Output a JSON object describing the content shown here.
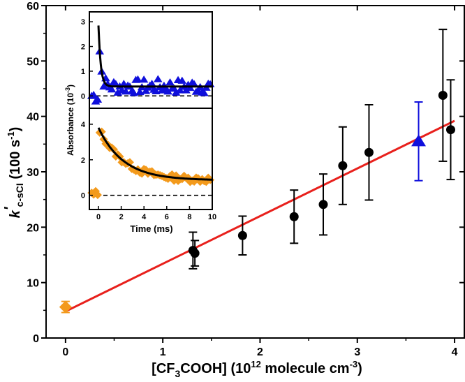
{
  "chart_data": [
    {
      "name": "main",
      "type": "scatter",
      "xlabel": "[CF3COOH] (10^12 molecule cm^-3)",
      "xlabel_parts": {
        "pre": "[CF",
        "sub": "3",
        "mid": "COOH] (10",
        "sup": "12",
        "post": " molecule cm",
        "sup2": "-3",
        "end": ")"
      },
      "ylabel": "k'c-sCI (100 s^-1)",
      "ylabel_parts": {
        "k": "k",
        "prime": "'",
        "sub": "c-sCI",
        "unit": " (100 s",
        "sup": "-1",
        "end": ")"
      },
      "xlim": [
        -0.2,
        4.1
      ],
      "ylim": [
        0,
        60
      ],
      "xticks": [
        0,
        1,
        2,
        3,
        4
      ],
      "yticks": [
        0,
        10,
        20,
        30,
        40,
        50,
        60
      ],
      "grid": false,
      "series": [
        {
          "name": "black circles",
          "marker": "circle",
          "color": "#000000",
          "points": [
            {
              "x": 1.31,
              "y": 15.8,
              "err": 3.3
            },
            {
              "x": 1.33,
              "y": 15.3,
              "err": 2.3
            },
            {
              "x": 1.82,
              "y": 18.5,
              "err": 3.5
            },
            {
              "x": 2.35,
              "y": 21.9,
              "err": 4.8
            },
            {
              "x": 2.65,
              "y": 24.1,
              "err": 5.5
            },
            {
              "x": 2.85,
              "y": 31.1,
              "err": 7.0
            },
            {
              "x": 3.12,
              "y": 33.5,
              "err": 8.6
            },
            {
              "x": 3.88,
              "y": 43.8,
              "err": 11.9
            },
            {
              "x": 3.96,
              "y": 37.6,
              "err": 9.0
            }
          ]
        },
        {
          "name": "blue triangle",
          "marker": "triangle",
          "color": "#0f0fdc",
          "points": [
            {
              "x": 3.63,
              "y": 35.5,
              "err": 7.1
            }
          ]
        },
        {
          "name": "orange diamond",
          "marker": "diamond",
          "color": "#f39a1c",
          "points": [
            {
              "x": 0.0,
              "y": 5.6,
              "err": 1.0
            }
          ]
        },
        {
          "name": "linear fit",
          "type": "line",
          "color": "#e8201c",
          "x": [
            0.0,
            4.0
          ],
          "y": [
            4.8,
            39.2
          ]
        }
      ]
    },
    {
      "name": "inset",
      "type": "scatter",
      "xlabel": "Time (ms)",
      "ylabel": "Absorbance (10^-3)",
      "ylabel_parts": {
        "pre": "Absorbance (10",
        "sup": "-3",
        "end": ")"
      },
      "xlim": [
        -0.8,
        10
      ],
      "xticks": [
        0,
        2,
        4,
        6,
        8,
        10
      ],
      "top_panel": {
        "ylim": [
          -0.5,
          3.4
        ],
        "yticks": [
          0,
          1,
          2,
          3
        ],
        "marker": "triangle",
        "color": "#0f0fdc",
        "decay": {
          "t0": 0.0,
          "peak": 2.85,
          "baseline": 0.38,
          "tau_ms": 0.2
        },
        "scatter_range": [
          -0.3,
          0.9
        ]
      },
      "bottom_panel": {
        "ylim": [
          -0.8,
          4.9
        ],
        "yticks": [
          0,
          2,
          4
        ],
        "marker": "diamond",
        "color": "#f39a1c",
        "decay": {
          "t0": 0.0,
          "peak": 3.8,
          "baseline": 0.85,
          "tau_ms": 2.2
        },
        "scatter_range": [
          0.7,
          1.4
        ]
      },
      "zero_line": {
        "style": "dashed",
        "y": 0
      }
    }
  ]
}
